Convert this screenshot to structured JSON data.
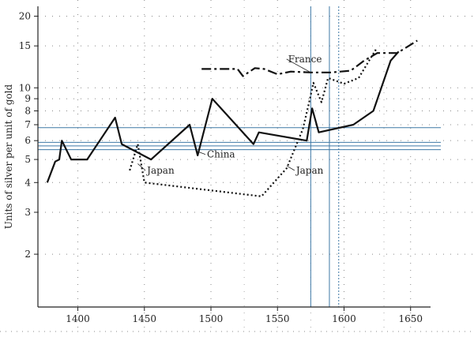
{
  "chart_data": {
    "type": "line",
    "title": "",
    "xlabel": "",
    "ylabel": "Units of silver per unit of gold",
    "yscale": "log",
    "xlim": [
      1370,
      1665
    ],
    "ylim": [
      1.2,
      22
    ],
    "xticks": [
      1400,
      1450,
      1500,
      1550,
      1600,
      1650
    ],
    "yticks": [
      {
        "value": 2,
        "label": "2"
      },
      {
        "value": 3,
        "label": "3"
      },
      {
        "value": 4,
        "label": "4"
      },
      {
        "value": 5,
        "label": "5"
      },
      {
        "value": 6,
        "label": "6"
      },
      {
        "value": 7,
        "label": "7"
      },
      {
        "value": 8,
        "label": "8"
      },
      {
        "value": 9,
        "label": "9"
      },
      {
        "value": 10,
        "label": "10"
      },
      {
        "value": 15,
        "label": "15"
      },
      {
        "value": 20,
        "label": "20"
      }
    ],
    "grid": "dotted",
    "series": [
      {
        "name": "China",
        "style": "solid",
        "x": [
          1377,
          1383,
          1386,
          1388,
          1395,
          1402,
          1407,
          1428,
          1433,
          1455,
          1484,
          1490,
          1501,
          1532,
          1536,
          1572,
          1576,
          1581,
          1607,
          1622,
          1635,
          1641
        ],
        "values": [
          4.0,
          4.9,
          5.0,
          6.0,
          5.0,
          5.0,
          5.0,
          7.5,
          5.8,
          5.0,
          7.0,
          5.2,
          9.0,
          5.8,
          6.5,
          6.0,
          8.2,
          6.5,
          7.0,
          8.0,
          13.0,
          14.2
        ]
      },
      {
        "name": "Japan",
        "style": "dotted",
        "x": [
          1439,
          1445,
          1450,
          1538,
          1557,
          1569,
          1574,
          1577,
          1583,
          1588,
          1600,
          1611,
          1617,
          1624
        ],
        "values": [
          4.5,
          5.8,
          4.0,
          3.5,
          4.6,
          6.7,
          8.8,
          10.5,
          8.7,
          11.0,
          10.4,
          11.0,
          12.5,
          14.5
        ]
      },
      {
        "name": "France",
        "style": "dash-dot",
        "x": [
          1493,
          1500,
          1520,
          1524,
          1533,
          1540,
          1550,
          1560,
          1575,
          1590,
          1605,
          1615,
          1625,
          1640,
          1655
        ],
        "values": [
          12.0,
          12.0,
          12.0,
          11.2,
          12.1,
          12.0,
          11.4,
          11.7,
          11.6,
          11.6,
          11.8,
          13.0,
          14.0,
          14.0,
          15.8
        ]
      }
    ],
    "hlines": [
      6.8,
      5.9,
      5.7,
      5.5
    ],
    "vlines": [
      {
        "x": 1575,
        "style": "solid"
      },
      {
        "x": 1589,
        "style": "solid"
      },
      {
        "x": 1596,
        "style": "dotted"
      }
    ],
    "annotations": [
      {
        "text": "France",
        "x": 1558,
        "y": 13.2,
        "pointer_to": [
          1575,
          11.6
        ]
      },
      {
        "text": "China",
        "x": 1497,
        "y": 5.25,
        "pointer_to": [
          1490,
          5.4
        ]
      },
      {
        "text": "Japan",
        "x": 1452,
        "y": 4.5,
        "pointer_to": [
          1445,
          4.8
        ]
      },
      {
        "text": "Japan",
        "x": 1564,
        "y": 4.5,
        "pointer_to": [
          1557,
          4.7
        ]
      }
    ]
  }
}
